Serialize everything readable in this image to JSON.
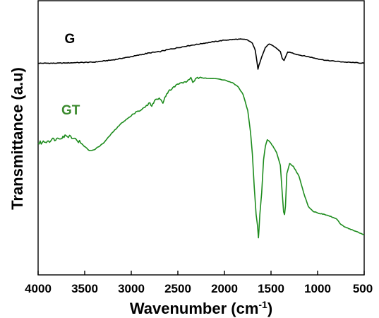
{
  "chart_data": {
    "type": "line",
    "title": "",
    "xlabel": "Wavenumber (cm",
    "xlabel_sup": "-1",
    "xlabel_close": ")",
    "ylabel": "Transmittance (a.u)",
    "xlim": [
      4000,
      500
    ],
    "x_reversed": true,
    "ylim": [
      0,
      100
    ],
    "y_ticks_labeled": false,
    "grid": false,
    "x_ticks": [
      4000,
      3500,
      3000,
      2500,
      2000,
      1500,
      1000,
      500
    ],
    "x_tick_labels": [
      "4000",
      "3500",
      "3000",
      "2500",
      "2000",
      "1500",
      "1000",
      "500"
    ],
    "series": [
      {
        "name": "G",
        "color": "#000000",
        "points": [
          [
            4000,
            77.2
          ],
          [
            3800,
            77.2
          ],
          [
            3600,
            77.4
          ],
          [
            3400,
            77.6
          ],
          [
            3200,
            78.4
          ],
          [
            3000,
            79.6
          ],
          [
            2800,
            81.0
          ],
          [
            2700,
            81.4
          ],
          [
            2650,
            81.8
          ],
          [
            2600,
            82.2
          ],
          [
            2400,
            83.5
          ],
          [
            2200,
            84.6
          ],
          [
            2000,
            85.6
          ],
          [
            1850,
            86.0
          ],
          [
            1760,
            85.8
          ],
          [
            1700,
            84.5
          ],
          [
            1670,
            82.0
          ],
          [
            1650,
            77.5
          ],
          [
            1640,
            75.0
          ],
          [
            1630,
            76.5
          ],
          [
            1600,
            79.5
          ],
          [
            1560,
            83.0
          ],
          [
            1520,
            84.2
          ],
          [
            1480,
            83.6
          ],
          [
            1440,
            82.6
          ],
          [
            1400,
            81.5
          ],
          [
            1380,
            79.0
          ],
          [
            1360,
            78.2
          ],
          [
            1340,
            79.8
          ],
          [
            1320,
            81.3
          ],
          [
            1280,
            81.0
          ],
          [
            1200,
            80.2
          ],
          [
            1100,
            79.6
          ],
          [
            1000,
            78.8
          ],
          [
            900,
            78.2
          ],
          [
            800,
            77.9
          ],
          [
            700,
            77.6
          ],
          [
            600,
            77.4
          ],
          [
            500,
            77.2
          ]
        ]
      },
      {
        "name": "GT",
        "color": "#1e8c1e",
        "points": [
          [
            4000,
            48.0
          ],
          [
            3900,
            48.8
          ],
          [
            3800,
            49.8
          ],
          [
            3700,
            50.8
          ],
          [
            3650,
            50.6
          ],
          [
            3600,
            49.8
          ],
          [
            3500,
            46.8
          ],
          [
            3450,
            45.3
          ],
          [
            3400,
            45.6
          ],
          [
            3300,
            48.0
          ],
          [
            3200,
            52.0
          ],
          [
            3100,
            55.5
          ],
          [
            3000,
            58.0
          ],
          [
            2950,
            59.5
          ],
          [
            2900,
            60.0
          ],
          [
            2850,
            61.2
          ],
          [
            2800,
            62.8
          ],
          [
            2780,
            61.5
          ],
          [
            2750,
            63.6
          ],
          [
            2700,
            64.5
          ],
          [
            2660,
            62.6
          ],
          [
            2640,
            64.8
          ],
          [
            2600,
            67.0
          ],
          [
            2500,
            69.6
          ],
          [
            2400,
            70.6
          ],
          [
            2360,
            72.0
          ],
          [
            2340,
            70.2
          ],
          [
            2300,
            71.8
          ],
          [
            2200,
            71.8
          ],
          [
            2100,
            71.6
          ],
          [
            2000,
            71.1
          ],
          [
            1900,
            69.8
          ],
          [
            1850,
            68.5
          ],
          [
            1800,
            65.8
          ],
          [
            1750,
            60.0
          ],
          [
            1720,
            52.0
          ],
          [
            1700,
            44.0
          ],
          [
            1680,
            32.0
          ],
          [
            1660,
            22.0
          ],
          [
            1645,
            18.0
          ],
          [
            1635,
            13.5
          ],
          [
            1630,
            16.0
          ],
          [
            1620,
            22.0
          ],
          [
            1600,
            30.0
          ],
          [
            1580,
            42.0
          ],
          [
            1560,
            47.0
          ],
          [
            1540,
            49.3
          ],
          [
            1520,
            48.8
          ],
          [
            1480,
            47.0
          ],
          [
            1440,
            44.6
          ],
          [
            1400,
            40.0
          ],
          [
            1380,
            30.0
          ],
          [
            1365,
            23.0
          ],
          [
            1355,
            22.0
          ],
          [
            1345,
            25.0
          ],
          [
            1330,
            37.0
          ],
          [
            1300,
            40.6
          ],
          [
            1260,
            39.6
          ],
          [
            1200,
            36.0
          ],
          [
            1150,
            30.0
          ],
          [
            1100,
            25.0
          ],
          [
            1050,
            23.2
          ],
          [
            1000,
            22.6
          ],
          [
            900,
            21.8
          ],
          [
            800,
            20.5
          ],
          [
            750,
            18.4
          ],
          [
            700,
            17.4
          ],
          [
            600,
            16.0
          ],
          [
            500,
            14.6
          ]
        ]
      }
    ],
    "annotations": [
      {
        "text": "G",
        "color": "#000000",
        "x": 3660,
        "y": 84.5
      },
      {
        "text": "GT",
        "color": "#3b8a2e",
        "x": 3650,
        "y": 58.5
      }
    ]
  }
}
